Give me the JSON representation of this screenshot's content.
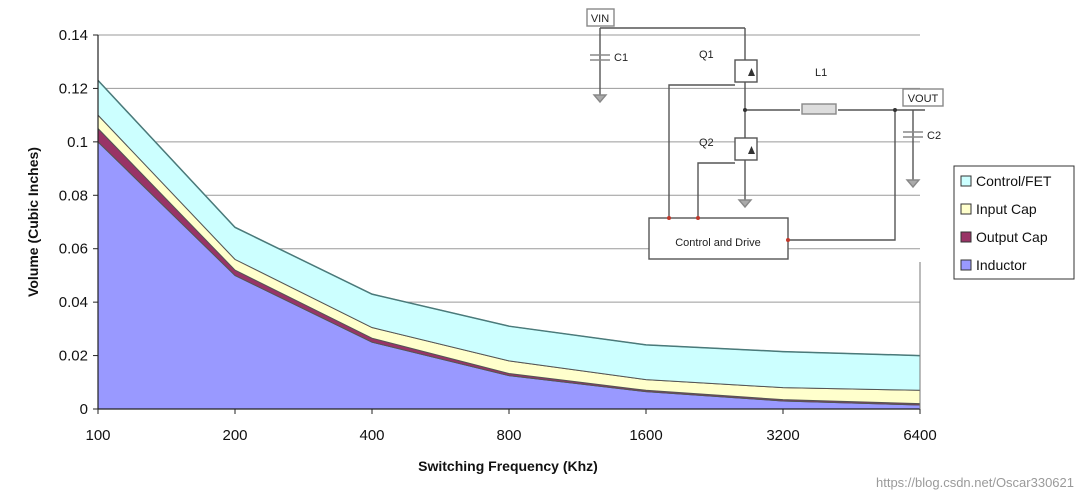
{
  "chart_data": {
    "type": "area",
    "stacked": true,
    "x_scale": "log2",
    "categories": [
      "100",
      "200",
      "400",
      "800",
      "1600",
      "3200",
      "6400"
    ],
    "x": [
      100,
      200,
      400,
      800,
      1600,
      3200,
      6400
    ],
    "xlabel": "Switching Frequency (Khz)",
    "ylabel": "Volume (Cubic Inches)",
    "ylim": [
      0,
      0.14
    ],
    "yticks": [
      "0",
      "0.02",
      "0.04",
      "0.06",
      "0.08",
      "0.1",
      "0.12",
      "0.14"
    ],
    "ytick_values": [
      0,
      0.02,
      0.04,
      0.06,
      0.08,
      0.1,
      0.12,
      0.14
    ],
    "grid": true,
    "legend_position": "right",
    "series": [
      {
        "name": "Inductor",
        "color": "#9999ff",
        "values": [
          0.1,
          0.05,
          0.025,
          0.0125,
          0.0065,
          0.003,
          0.0015
        ]
      },
      {
        "name": "Output Cap",
        "color": "#993366",
        "values": [
          0.005,
          0.002,
          0.0015,
          0.0008,
          0.0005,
          0.0005,
          0.0005
        ]
      },
      {
        "name": "Input Cap",
        "color": "#ffffcc",
        "values": [
          0.005,
          0.004,
          0.004,
          0.0047,
          0.004,
          0.0045,
          0.005
        ]
      },
      {
        "name": "Control/FET",
        "color": "#ccffff",
        "values": [
          0.013,
          0.012,
          0.0125,
          0.013,
          0.013,
          0.0135,
          0.013
        ]
      }
    ],
    "legend_order": [
      "Control/FET",
      "Input Cap",
      "Output Cap",
      "Inductor"
    ]
  },
  "schematic": {
    "vin_label": "VIN",
    "vout_label": "VOUT",
    "c1_label": "C1",
    "c2_label": "C2",
    "q1_label": "Q1",
    "q2_label": "Q2",
    "l1_label": "L1",
    "control_label": "Control and Drive"
  },
  "watermark": "https://blog.csdn.net/Oscar330621"
}
